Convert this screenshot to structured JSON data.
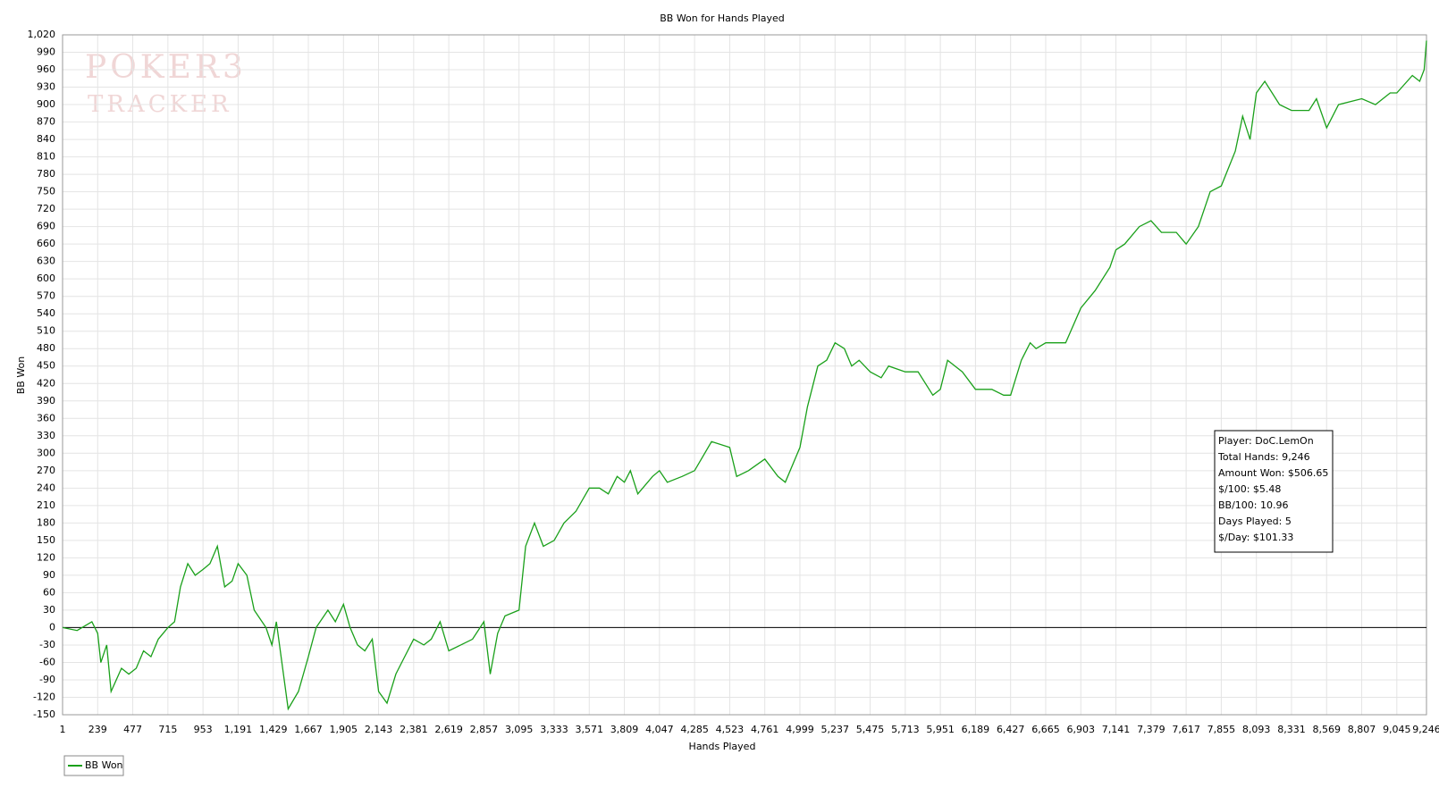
{
  "chart_data": {
    "type": "line",
    "title": "BB Won for Hands Played",
    "xlabel": "Hands Played",
    "ylabel": "BB Won",
    "watermark": [
      "POKER3",
      "TRACKER"
    ],
    "xlim": [
      1,
      9246
    ],
    "xticks": [
      1,
      239,
      477,
      715,
      953,
      {
        "value": 1191,
        "label": "1,191"
      },
      {
        "value": 1429,
        "label": "1,429"
      },
      {
        "value": 1667,
        "label": "1,667"
      },
      {
        "value": 1905,
        "label": "1,905"
      },
      {
        "value": 2143,
        "label": "2,143"
      },
      {
        "value": 2381,
        "label": "2,381"
      },
      {
        "value": 2619,
        "label": "2,619"
      },
      {
        "value": 2857,
        "label": "2,857"
      },
      {
        "value": 3095,
        "label": "3,095"
      },
      {
        "value": 3333,
        "label": "3,333"
      },
      {
        "value": 3571,
        "label": "3,571"
      },
      {
        "value": 3809,
        "label": "3,809"
      },
      {
        "value": 4047,
        "label": "4,047"
      },
      {
        "value": 4285,
        "label": "4,285"
      },
      {
        "value": 4523,
        "label": "4,523"
      },
      {
        "value": 4761,
        "label": "4,761"
      },
      {
        "value": 4999,
        "label": "4,999"
      },
      {
        "value": 5237,
        "label": "5,237"
      },
      {
        "value": 5475,
        "label": "5,475"
      },
      {
        "value": 5713,
        "label": "5,713"
      },
      {
        "value": 5951,
        "label": "5,951"
      },
      {
        "value": 6189,
        "label": "6,189"
      },
      {
        "value": 6427,
        "label": "6,427"
      },
      {
        "value": 6665,
        "label": "6,665"
      },
      {
        "value": 6903,
        "label": "6,903"
      },
      {
        "value": 7141,
        "label": "7,141"
      },
      {
        "value": 7379,
        "label": "7,379"
      },
      {
        "value": 7617,
        "label": "7,617"
      },
      {
        "value": 7855,
        "label": "7,855"
      },
      {
        "value": 8093,
        "label": "8,093"
      },
      {
        "value": 8331,
        "label": "8,331"
      },
      {
        "value": 8569,
        "label": "8,569"
      },
      {
        "value": 8807,
        "label": "8,807"
      },
      {
        "value": 9045,
        "label": "9,045"
      },
      {
        "value": 9246,
        "label": "9,246"
      }
    ],
    "ylim": [
      -150,
      1020
    ],
    "yticks": [
      -150,
      -120,
      -90,
      -60,
      -30,
      0,
      30,
      60,
      90,
      120,
      150,
      180,
      210,
      240,
      270,
      300,
      330,
      360,
      390,
      420,
      450,
      480,
      510,
      540,
      570,
      600,
      630,
      660,
      690,
      720,
      750,
      780,
      810,
      840,
      870,
      900,
      930,
      960,
      990,
      {
        "value": 1020,
        "label": "1,020"
      }
    ],
    "grid": true,
    "zero_line": true,
    "legend": "bottom-left",
    "x": [
      1,
      100,
      200,
      239,
      260,
      300,
      330,
      400,
      450,
      500,
      550,
      600,
      650,
      715,
      760,
      800,
      850,
      900,
      953,
      1000,
      1050,
      1100,
      1150,
      1191,
      1250,
      1300,
      1380,
      1420,
      1450,
      1530,
      1600,
      1667,
      1720,
      1800,
      1850,
      1905,
      1950,
      2000,
      2050,
      2100,
      2143,
      2200,
      2260,
      2320,
      2381,
      2450,
      2500,
      2560,
      2619,
      2700,
      2780,
      2857,
      2900,
      2950,
      3000,
      3095,
      3140,
      3200,
      3260,
      3333,
      3400,
      3480,
      3571,
      3640,
      3700,
      3760,
      3809,
      3850,
      3900,
      4000,
      4047,
      4100,
      4200,
      4285,
      4400,
      4523,
      4570,
      4650,
      4761,
      4850,
      4900,
      4999,
      5050,
      5120,
      5180,
      5237,
      5300,
      5350,
      5400,
      5475,
      5550,
      5600,
      5713,
      5800,
      5900,
      5951,
      6000,
      6100,
      6189,
      6300,
      6380,
      6427,
      6500,
      6560,
      6600,
      6665,
      6800,
      6903,
      7000,
      7100,
      7141,
      7200,
      7300,
      7379,
      7450,
      7550,
      7617,
      7700,
      7780,
      7855,
      7950,
      8000,
      8050,
      8093,
      8150,
      8250,
      8331,
      8450,
      8500,
      8569,
      8650,
      8807,
      8900,
      9000,
      9045,
      9150,
      9200,
      9230,
      9246
    ],
    "series": [
      {
        "name": "BB Won",
        "color": "#1aa01a",
        "values": [
          0,
          -5,
          10,
          -10,
          -60,
          -30,
          -110,
          -70,
          -80,
          -70,
          -40,
          -50,
          -20,
          0,
          10,
          70,
          110,
          90,
          100,
          110,
          140,
          70,
          80,
          110,
          90,
          30,
          0,
          -30,
          10,
          -140,
          -110,
          -50,
          0,
          30,
          10,
          40,
          0,
          -30,
          -40,
          -20,
          -110,
          -130,
          -80,
          -50,
          -20,
          -30,
          -20,
          10,
          -40,
          -30,
          -20,
          10,
          -80,
          -10,
          20,
          30,
          140,
          180,
          140,
          150,
          180,
          200,
          240,
          240,
          230,
          260,
          250,
          270,
          230,
          260,
          270,
          250,
          260,
          270,
          320,
          310,
          260,
          270,
          290,
          260,
          250,
          310,
          380,
          450,
          460,
          490,
          480,
          450,
          460,
          440,
          430,
          450,
          440,
          440,
          400,
          410,
          460,
          440,
          410,
          410,
          400,
          400,
          460,
          490,
          480,
          490,
          490,
          550,
          580,
          620,
          650,
          660,
          690,
          700,
          680,
          680,
          660,
          690,
          750,
          760,
          820,
          880,
          840,
          920,
          940,
          900,
          890,
          890,
          910,
          860,
          900,
          910,
          900,
          920,
          920,
          950,
          940,
          960,
          1010
        ]
      }
    ],
    "info_box": [
      "Player: DoC.LemOn",
      "Total Hands: 9,246",
      "Amount Won: $506.65",
      "$/100: $5.48",
      "BB/100: 10.96",
      "Days Played: 5",
      "$/Day: $101.33"
    ]
  }
}
